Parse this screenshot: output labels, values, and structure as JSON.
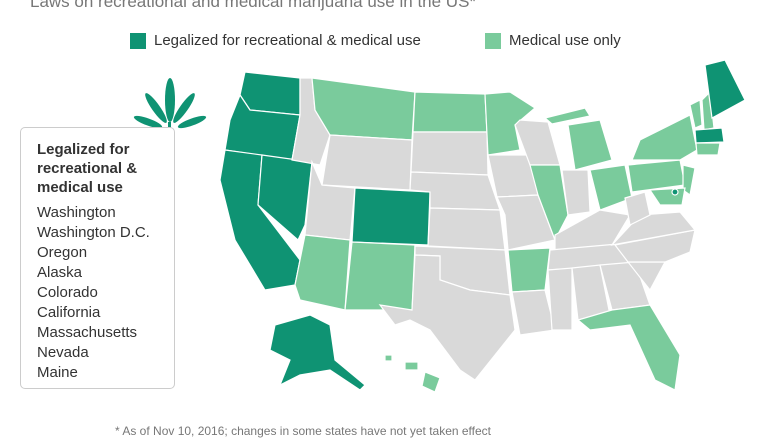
{
  "header": {
    "title": "Laws on recreational and medical marijuana use in the US*"
  },
  "legend": {
    "items": [
      {
        "label": "Legalized for recreational & medical use",
        "color": "#0f9373"
      },
      {
        "label": "Medical use only",
        "color": "#7acb9c"
      }
    ]
  },
  "box": {
    "title": "Legalized for recreational & medical use",
    "states": [
      "Washington",
      "Washington D.C.",
      "Oregon",
      "Alaska",
      "Colorado",
      "California",
      "Massachusetts",
      "Nevada",
      "Maine"
    ]
  },
  "footnote": "* As of Nov 10, 2016; changes in some states have not yet taken effect"
}
